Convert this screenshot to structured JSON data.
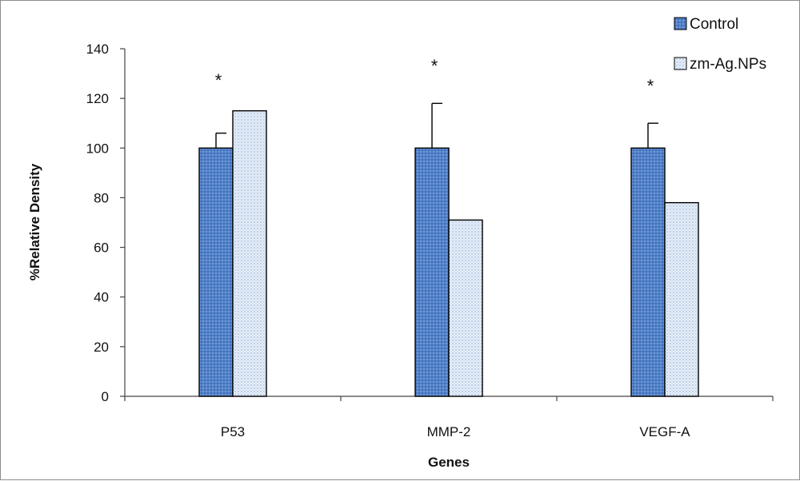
{
  "chart_data": {
    "type": "bar",
    "categories": [
      "P53",
      "MMP-2",
      "VEGF-A"
    ],
    "series": [
      {
        "name": "Control",
        "values": [
          100,
          100,
          100
        ],
        "error": [
          6,
          18,
          10
        ],
        "color": "#4f7fc8"
      },
      {
        "name": "zm-Ag.NPs",
        "values": [
          115,
          71,
          78
        ],
        "color": "#dbe7f5"
      }
    ],
    "annotations": [
      "*",
      "*",
      "*"
    ],
    "xlabel": "Genes",
    "ylabel": "%Relative Density",
    "ylim": [
      0,
      140
    ],
    "yticks": [
      0,
      20,
      40,
      60,
      80,
      100,
      120,
      140
    ],
    "grid": false,
    "legend_position": "top-right"
  }
}
